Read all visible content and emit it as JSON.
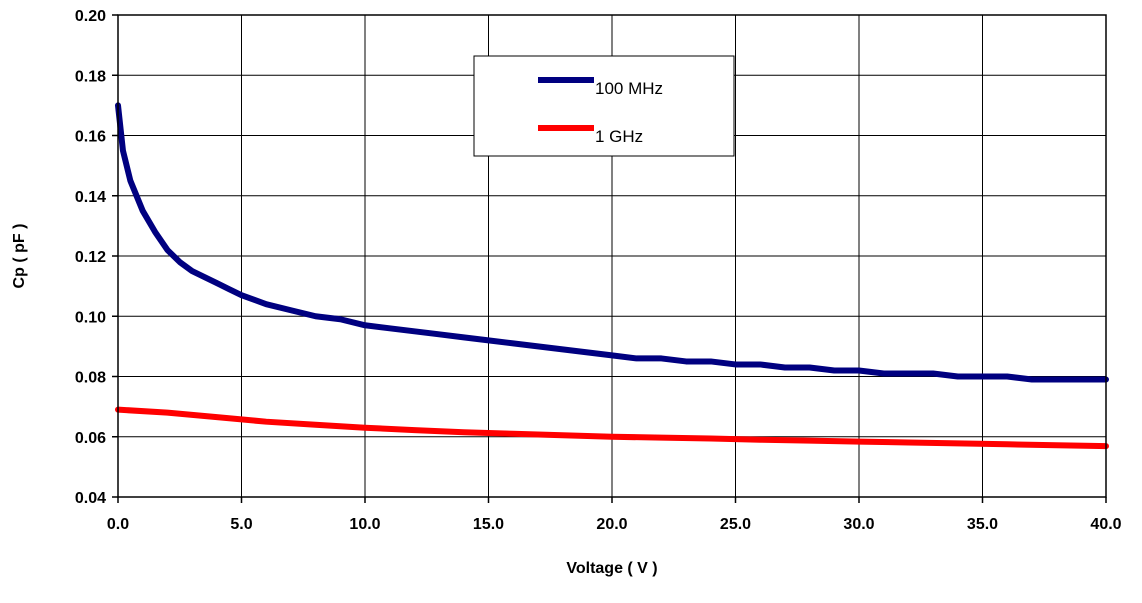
{
  "chart_data": {
    "type": "line",
    "title": "",
    "xlabel": "Voltage ( V )",
    "ylabel": "Cp ( pF )",
    "xlim": [
      0,
      40
    ],
    "ylim": [
      0.04,
      0.2
    ],
    "x_ticks": [
      "0.0",
      "5.0",
      "10.0",
      "15.0",
      "20.0",
      "25.0",
      "30.0",
      "35.0",
      "40.0"
    ],
    "y_ticks": [
      "0.04",
      "0.06",
      "0.08",
      "0.10",
      "0.12",
      "0.14",
      "0.16",
      "0.18",
      "0.20"
    ],
    "grid": true,
    "legend_position": "top-center",
    "series": [
      {
        "name": "100 MHz",
        "color": "#000080",
        "x": [
          0,
          0.2,
          0.5,
          1,
          1.5,
          2,
          2.5,
          3,
          3.5,
          4,
          4.5,
          5,
          6,
          7,
          8,
          9,
          10,
          11,
          12,
          13,
          14,
          15,
          16,
          17,
          18,
          19,
          20,
          21,
          22,
          23,
          24,
          25,
          26,
          27,
          28,
          29,
          30,
          31,
          32,
          33,
          34,
          35,
          36,
          37,
          38,
          39,
          40
        ],
        "values": [
          0.17,
          0.155,
          0.145,
          0.135,
          0.128,
          0.122,
          0.118,
          0.115,
          0.113,
          0.111,
          0.109,
          0.107,
          0.104,
          0.102,
          0.1,
          0.099,
          0.097,
          0.096,
          0.095,
          0.094,
          0.093,
          0.092,
          0.091,
          0.09,
          0.089,
          0.088,
          0.087,
          0.086,
          0.086,
          0.085,
          0.085,
          0.084,
          0.084,
          0.083,
          0.083,
          0.082,
          0.082,
          0.081,
          0.081,
          0.081,
          0.08,
          0.08,
          0.08,
          0.079,
          0.079,
          0.079,
          0.079
        ]
      },
      {
        "name": "1 GHz",
        "color": "#ff0000",
        "x": [
          0,
          2,
          4,
          6,
          8,
          10,
          12,
          14,
          16,
          18,
          20,
          22,
          24,
          26,
          28,
          30,
          32,
          34,
          36,
          38,
          40
        ],
        "values": [
          0.069,
          0.068,
          0.0665,
          0.065,
          0.064,
          0.063,
          0.0622,
          0.0615,
          0.061,
          0.0605,
          0.06,
          0.0597,
          0.0594,
          0.059,
          0.0587,
          0.0584,
          0.0581,
          0.0578,
          0.0575,
          0.0572,
          0.0569
        ]
      }
    ]
  }
}
